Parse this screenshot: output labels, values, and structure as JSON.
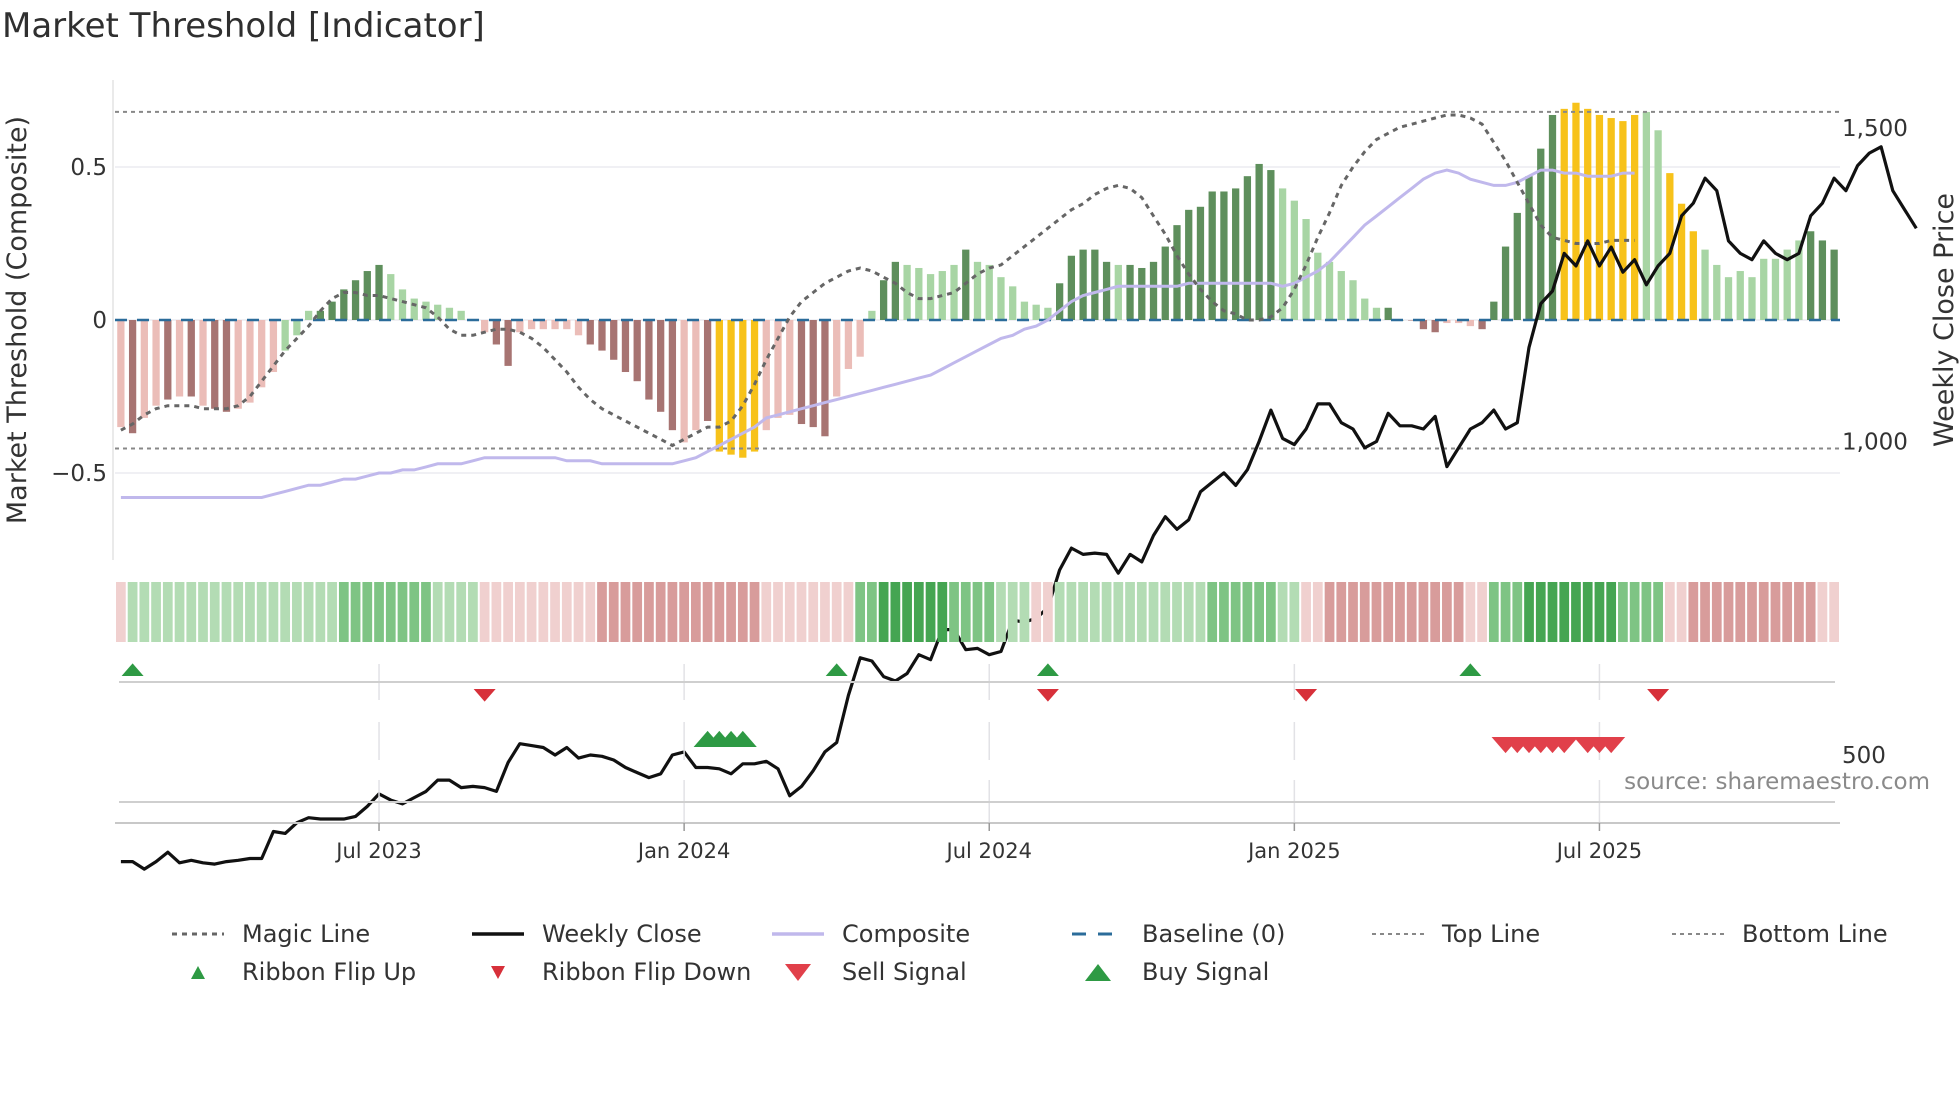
{
  "title": "Market Threshold [Indicator]",
  "source": "source: sharemaestro.com",
  "colors": {
    "magic": "#666666",
    "close": "#111111",
    "composite": "#c0b8ec",
    "baseline": "#2b6c9a",
    "threshold": "#888888",
    "gold": "#f7c21a",
    "green_dark": "#5e8f5c",
    "green_light": "#a8d5a4",
    "red_dark": "#a77472",
    "red_light": "#ebbdb8",
    "flip_up": "#2e9a44",
    "flip_down": "#d7303a",
    "buy": "#2e9a44",
    "sell": "#e1404a"
  },
  "chart_data": {
    "type": "bar",
    "title": "Market Threshold [Indicator]",
    "ylabel": "Market Threshold (Composite)",
    "y2label": "Weekly Close Price",
    "ylim": [
      -0.78,
      0.78
    ],
    "y2lim": [
      222,
      1664
    ],
    "yticks": [
      0.5,
      0,
      -0.5
    ],
    "ytick_labels": [
      "0.5",
      "0",
      "−0.5"
    ],
    "y2ticks": [
      1500,
      1000,
      500
    ],
    "y2tick_labels": [
      "1,500",
      "1,000",
      "500"
    ],
    "xticks": [
      {
        "week": 22,
        "label": "Jul 2023"
      },
      {
        "week": 48,
        "label": "Jan 2024"
      },
      {
        "week": 74,
        "label": "Jul 2024"
      },
      {
        "week": 100,
        "label": "Jan 2025"
      },
      {
        "week": 126,
        "label": "Jul 2025"
      }
    ],
    "top_line": 0.68,
    "bottom_line": -0.42,
    "baseline": 0,
    "composite_bars": [
      -0.35,
      -0.37,
      -0.32,
      -0.28,
      -0.26,
      -0.25,
      -0.25,
      -0.28,
      -0.29,
      -0.3,
      -0.29,
      -0.27,
      -0.22,
      -0.17,
      -0.1,
      -0.05,
      0.03,
      0.03,
      0.06,
      0.1,
      0.13,
      0.16,
      0.18,
      0.15,
      0.1,
      0.07,
      0.06,
      0.05,
      0.04,
      0.03,
      0,
      -0.04,
      -0.08,
      -0.15,
      -0.04,
      -0.03,
      -0.03,
      -0.03,
      -0.03,
      -0.05,
      -0.08,
      -0.1,
      -0.13,
      -0.17,
      -0.2,
      -0.26,
      -0.3,
      -0.36,
      -0.4,
      -0.36,
      -0.33,
      -0.43,
      -0.44,
      -0.45,
      -0.43,
      -0.36,
      -0.32,
      -0.31,
      -0.34,
      -0.35,
      -0.38,
      -0.25,
      -0.16,
      -0.12,
      0.03,
      0.13,
      0.19,
      0.18,
      0.17,
      0.15,
      0.16,
      0.18,
      0.23,
      0.19,
      0.18,
      0.14,
      0.11,
      0.06,
      0.05,
      0.04,
      0.12,
      0.21,
      0.23,
      0.23,
      0.19,
      0.18,
      0.18,
      0.17,
      0.19,
      0.24,
      0.31,
      0.36,
      0.37,
      0.42,
      0.42,
      0.43,
      0.47,
      0.51,
      0.49,
      0.43,
      0.39,
      0.33,
      0.22,
      0.19,
      0.16,
      0.13,
      0.07,
      0.04,
      0.04,
      0,
      0,
      -0.03,
      -0.04,
      -0.01,
      -0.01,
      -0.02,
      -0.03,
      0.06,
      0.24,
      0.35,
      0.47,
      0.56,
      0.67,
      0.69,
      0.71,
      0.69,
      0.67,
      0.66,
      0.65,
      0.67,
      0.68,
      0.62,
      0.48,
      0.38,
      0.29,
      0.23,
      0.18,
      0.14,
      0.16,
      0.14,
      0.2,
      0.2,
      0.23,
      0.26,
      0.29,
      0.26,
      0.23
    ],
    "bar_colors": [
      "rl",
      "rd",
      "rl",
      "rl",
      "rd",
      "rl",
      "rd",
      "rl",
      "rd",
      "rd",
      "rl",
      "rl",
      "rl",
      "rl",
      "gl",
      "gl",
      "gl",
      "gd",
      "gd",
      "gd",
      "gd",
      "gd",
      "gd",
      "gl",
      "gl",
      "gl",
      "gl",
      "gl",
      "gl",
      "gl",
      "gl",
      "rl",
      "rd",
      "rd",
      "rl",
      "rl",
      "rl",
      "rl",
      "rl",
      "rl",
      "rd",
      "rd",
      "rd",
      "rd",
      "rd",
      "rd",
      "rd",
      "rd",
      "rl",
      "rl",
      "rd",
      "gold",
      "gold",
      "gold",
      "gold",
      "rl",
      "rl",
      "rl",
      "rd",
      "rd",
      "rd",
      "rl",
      "rl",
      "rl",
      "gl",
      "gd",
      "gd",
      "gl",
      "gl",
      "gl",
      "gl",
      "gl",
      "gd",
      "gl",
      "gl",
      "gl",
      "gl",
      "gl",
      "gl",
      "gl",
      "gd",
      "gd",
      "gd",
      "gd",
      "gd",
      "gl",
      "gd",
      "gd",
      "gd",
      "gd",
      "gd",
      "gd",
      "gd",
      "gd",
      "gd",
      "gd",
      "gd",
      "gd",
      "gd",
      "gl",
      "gl",
      "gl",
      "gl",
      "gl",
      "gl",
      "gl",
      "gl",
      "gl",
      "gd",
      "gd",
      "rd",
      "rd",
      "rd",
      "rl",
      "rl",
      "rl",
      "rd",
      "gd",
      "gd",
      "gd",
      "gd",
      "gd",
      "gd",
      "gold",
      "gold",
      "gold",
      "gold",
      "gold",
      "gold",
      "gold",
      "gl",
      "gl",
      "gold",
      "gold",
      "gold",
      "gl",
      "gl",
      "gl",
      "gl",
      "gl",
      "gl",
      "gl",
      "gl",
      "gl",
      "gd",
      "gd",
      "gd",
      "gd",
      "gd",
      "gd",
      "gl"
    ],
    "magic_line": [
      -0.36,
      -0.34,
      -0.31,
      -0.29,
      -0.28,
      -0.28,
      -0.28,
      -0.29,
      -0.29,
      -0.29,
      -0.28,
      -0.25,
      -0.2,
      -0.15,
      -0.1,
      -0.06,
      -0.02,
      0.03,
      0.07,
      0.09,
      0.09,
      0.08,
      0.08,
      0.07,
      0.06,
      0.05,
      0.04,
      0.01,
      -0.03,
      -0.05,
      -0.05,
      -0.04,
      -0.03,
      -0.03,
      -0.04,
      -0.06,
      -0.09,
      -0.13,
      -0.17,
      -0.22,
      -0.26,
      -0.29,
      -0.31,
      -0.33,
      -0.35,
      -0.37,
      -0.39,
      -0.41,
      -0.39,
      -0.37,
      -0.35,
      -0.35,
      -0.33,
      -0.28,
      -0.21,
      -0.13,
      -0.06,
      0.01,
      0.06,
      0.09,
      0.12,
      0.14,
      0.16,
      0.17,
      0.16,
      0.14,
      0.12,
      0.09,
      0.07,
      0.07,
      0.08,
      0.09,
      0.12,
      0.15,
      0.17,
      0.18,
      0.21,
      0.24,
      0.27,
      0.3,
      0.33,
      0.36,
      0.38,
      0.41,
      0.43,
      0.44,
      0.43,
      0.4,
      0.34,
      0.28,
      0.21,
      0.15,
      0.1,
      0.06,
      0.03,
      0.02,
      0.0,
      0.0,
      0.01,
      0.04,
      0.1,
      0.18,
      0.27,
      0.35,
      0.44,
      0.5,
      0.55,
      0.59,
      0.61,
      0.63,
      0.64,
      0.65,
      0.66,
      0.67,
      0.67,
      0.66,
      0.64,
      0.58,
      0.52,
      0.45,
      0.38,
      0.31,
      0.27,
      0.26,
      0.25,
      0.25,
      0.25,
      0.26,
      0.26,
      0.26
    ],
    "composite_line": [
      -0.58,
      -0.58,
      -0.58,
      -0.58,
      -0.58,
      -0.58,
      -0.58,
      -0.58,
      -0.58,
      -0.58,
      -0.58,
      -0.58,
      -0.58,
      -0.57,
      -0.56,
      -0.55,
      -0.54,
      -0.54,
      -0.53,
      -0.52,
      -0.52,
      -0.51,
      -0.5,
      -0.5,
      -0.49,
      -0.49,
      -0.48,
      -0.47,
      -0.47,
      -0.47,
      -0.46,
      -0.45,
      -0.45,
      -0.45,
      -0.45,
      -0.45,
      -0.45,
      -0.45,
      -0.46,
      -0.46,
      -0.46,
      -0.47,
      -0.47,
      -0.47,
      -0.47,
      -0.47,
      -0.47,
      -0.47,
      -0.46,
      -0.45,
      -0.43,
      -0.41,
      -0.39,
      -0.37,
      -0.35,
      -0.32,
      -0.31,
      -0.3,
      -0.29,
      -0.28,
      -0.27,
      -0.26,
      -0.25,
      -0.24,
      -0.23,
      -0.22,
      -0.21,
      -0.2,
      -0.19,
      -0.18,
      -0.16,
      -0.14,
      -0.12,
      -0.1,
      -0.08,
      -0.06,
      -0.05,
      -0.03,
      -0.02,
      0.0,
      0.03,
      0.06,
      0.08,
      0.09,
      0.1,
      0.11,
      0.11,
      0.11,
      0.11,
      0.11,
      0.11,
      0.12,
      0.12,
      0.12,
      0.12,
      0.12,
      0.12,
      0.12,
      0.12,
      0.11,
      0.12,
      0.14,
      0.16,
      0.19,
      0.23,
      0.27,
      0.31,
      0.34,
      0.37,
      0.4,
      0.43,
      0.46,
      0.48,
      0.49,
      0.48,
      0.46,
      0.45,
      0.44,
      0.44,
      0.45,
      0.47,
      0.49,
      0.49,
      0.48,
      0.48,
      0.47,
      0.47,
      0.47,
      0.48,
      0.48
    ],
    "weekly_close": [
      330,
      330,
      318,
      330,
      345,
      328,
      332,
      328,
      326,
      330,
      332,
      335,
      335,
      378,
      375,
      392,
      400,
      398,
      398,
      398,
      402,
      418,
      438,
      428,
      422,
      432,
      442,
      460,
      460,
      448,
      450,
      448,
      442,
      488,
      518,
      515,
      512,
      500,
      512,
      495,
      500,
      498,
      492,
      480,
      472,
      464,
      470,
      500,
      505,
      480,
      480,
      478,
      470,
      486,
      486,
      490,
      478,
      435,
      450,
      475,
      505,
      520,
      595,
      655,
      650,
      625,
      618,
      630,
      660,
      652,
      700,
      700,
      668,
      670,
      660,
      665,
      715,
      712,
      718,
      735,
      795,
      830,
      820,
      822,
      820,
      790,
      820,
      808,
      850,
      880,
      860,
      875,
      920,
      935,
      950,
      930,
      955,
      1000,
      1050,
      1005,
      995,
      1020,
      1060,
      1060,
      1030,
      1020,
      990,
      1000,
      1045,
      1025,
      1025,
      1020,
      1040,
      960,
      990,
      1020,
      1030,
      1050,
      1020,
      1030,
      1150,
      1220,
      1240,
      1300,
      1280,
      1320,
      1280,
      1310,
      1270,
      1290,
      1250,
      1280,
      1300,
      1360,
      1380,
      1420,
      1400,
      1320,
      1300,
      1290,
      1320,
      1300,
      1290,
      1300,
      1360,
      1380,
      1420,
      1400,
      1440,
      1460,
      1470,
      1400,
      1370,
      1340
    ],
    "ribbon": [
      "rl",
      "gl",
      "gl",
      "gl",
      "gl",
      "gl",
      "gl",
      "gl",
      "gl",
      "gl",
      "gl",
      "gl",
      "gl",
      "gl",
      "gl",
      "gl",
      "gl",
      "gl",
      "gl",
      "gm",
      "gm",
      "gm",
      "gm",
      "gm",
      "gm",
      "gm",
      "gm",
      "gl",
      "gl",
      "gl",
      "gl",
      "rl",
      "rl",
      "rl",
      "rl",
      "rl",
      "rl",
      "rl",
      "rl",
      "rl",
      "rl",
      "rm",
      "rm",
      "rm",
      "rm",
      "rm",
      "rm",
      "rm",
      "rm",
      "rm",
      "rm",
      "rm",
      "rm",
      "rm",
      "rm",
      "rl",
      "rl",
      "rl",
      "rl",
      "rl",
      "rl",
      "rl",
      "rl",
      "gm",
      "gm",
      "gd",
      "gd",
      "gd",
      "gd",
      "gd",
      "gd",
      "gm",
      "gm",
      "gm",
      "gm",
      "gl",
      "gl",
      "gl",
      "rl",
      "rl",
      "gl",
      "gl",
      "gl",
      "gl",
      "gl",
      "gl",
      "gl",
      "gl",
      "gl",
      "gl",
      "gl",
      "gl",
      "gl",
      "gm",
      "gm",
      "gm",
      "gm",
      "gm",
      "gm",
      "gl",
      "gl",
      "rl",
      "rl",
      "rm",
      "rm",
      "rm",
      "rm",
      "rm",
      "rm",
      "rm",
      "rm",
      "rm",
      "rm",
      "rm",
      "rm",
      "rl",
      "rl",
      "gm",
      "gm",
      "gm",
      "gd",
      "gd",
      "gd",
      "gd",
      "gd",
      "gd",
      "gd",
      "gd",
      "gm",
      "gm",
      "gm",
      "gm",
      "rl",
      "rl",
      "rm",
      "rm",
      "rm",
      "rm",
      "rm",
      "rm",
      "rm",
      "rm",
      "rm",
      "rm",
      "rm",
      "rl",
      "rl"
    ],
    "flip_up": [
      1,
      61,
      79,
      115
    ],
    "flip_down": [
      31,
      79,
      101,
      131
    ],
    "buy_signals": [
      50,
      51,
      52,
      53
    ],
    "sell_signals": [
      118,
      119,
      120,
      121,
      122,
      123,
      125,
      126,
      127
    ]
  },
  "legend": [
    {
      "label": "Magic Line",
      "sym": "dotline"
    },
    {
      "label": "Weekly Close",
      "sym": "solid"
    },
    {
      "label": "Composite",
      "sym": "composite"
    },
    {
      "label": "Baseline (0)",
      "sym": "dash"
    },
    {
      "label": "Top Line",
      "sym": "thin-dash"
    },
    {
      "label": "Bottom Line",
      "sym": "thin-dash"
    },
    {
      "label": "Ribbon Flip Up",
      "sym": "tri-up-small"
    },
    {
      "label": "Ribbon Flip Down",
      "sym": "tri-down-small"
    },
    {
      "label": "Sell Signal",
      "sym": "tri-down"
    },
    {
      "label": "Buy Signal",
      "sym": "tri-up"
    }
  ]
}
